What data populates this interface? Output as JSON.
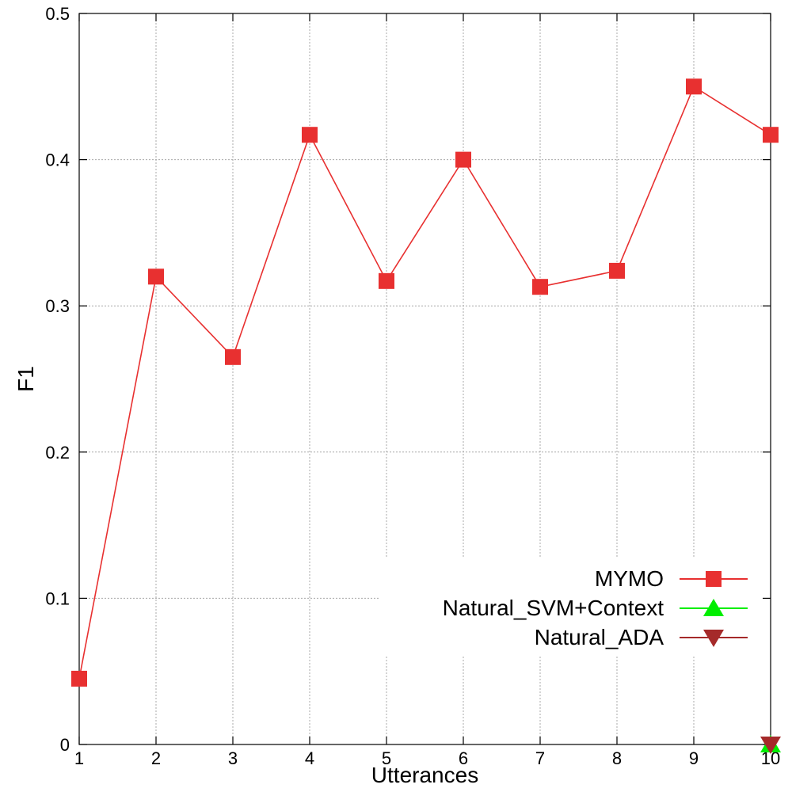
{
  "chart_data": {
    "type": "line",
    "xlabel": "Utterances",
    "ylabel": "F1",
    "xlim": [
      1,
      10
    ],
    "ylim": [
      0,
      0.5
    ],
    "x_ticks": [
      1,
      2,
      3,
      4,
      5,
      6,
      7,
      8,
      9,
      10
    ],
    "y_ticks": [
      0,
      0.1,
      0.2,
      0.3,
      0.4,
      0.5
    ],
    "y_tick_labels": [
      "0",
      "0.1",
      "0.2",
      "0.3",
      "0.4",
      "0.5"
    ],
    "grid": true,
    "legend_position": "bottom-right",
    "series": [
      {
        "name": "MYMO",
        "color": "#e83030",
        "marker": "square",
        "x": [
          1,
          2,
          3,
          4,
          5,
          6,
          7,
          8,
          9,
          10
        ],
        "values": [
          0.045,
          0.32,
          0.265,
          0.417,
          0.317,
          0.4,
          0.313,
          0.324,
          0.45,
          0.417
        ]
      },
      {
        "name": "Natural_SVM+Context",
        "color": "#00ee00",
        "marker": "triangle-up",
        "x": [
          10
        ],
        "values": [
          0
        ]
      },
      {
        "name": "Natural_ADA",
        "color": "#a52a2a",
        "marker": "triangle-down",
        "x": [
          10
        ],
        "values": [
          0
        ]
      }
    ]
  }
}
